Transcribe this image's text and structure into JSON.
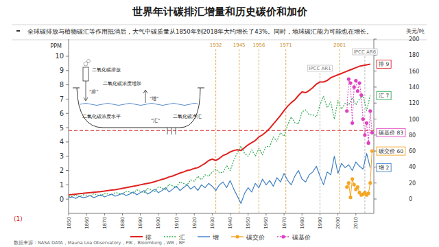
{
  "chart_data": {
    "type": "line",
    "title": "世界年计碳排汇增量和历史碳价和加价",
    "subtitle": "全球碳排放与植物碳汇等作用抵消后，大气中碳质量从1850年到2018年大约增长了43%。同时，地球碳汇能力可能也在增长。",
    "y_label": "PPM",
    "y2_label": "美元/吨",
    "source": "数据来源：NASA DATA，Mauna Loa Observatory，PIK，Bloomberg，WB，BP",
    "note": "(1)",
    "x": [
      1850,
      1852,
      1854,
      1856,
      1858,
      1860,
      1862,
      1864,
      1866,
      1868,
      1870,
      1872,
      1874,
      1876,
      1878,
      1880,
      1882,
      1884,
      1886,
      1888,
      1890,
      1892,
      1894,
      1896,
      1898,
      1900,
      1902,
      1904,
      1906,
      1908,
      1910,
      1912,
      1914,
      1916,
      1918,
      1920,
      1922,
      1924,
      1926,
      1928,
      1930,
      1932,
      1934,
      1936,
      1938,
      1940,
      1942,
      1944,
      1946,
      1948,
      1950,
      1952,
      1954,
      1956,
      1958,
      1960,
      1962,
      1964,
      1966,
      1968,
      1970,
      1972,
      1974,
      1976,
      1978,
      1980,
      1982,
      1984,
      1986,
      1988,
      1990,
      1992,
      1994,
      1996,
      1998,
      2000,
      2002,
      2004,
      2006,
      2008,
      2010,
      2012,
      2014,
      2016,
      2018
    ],
    "xlim": [
      1850,
      2020
    ],
    "xticks": [
      1850,
      1860,
      1870,
      1880,
      1890,
      1900,
      1910,
      1920,
      1930,
      1940,
      1950,
      1960,
      1970,
      1980,
      1990,
      2000,
      2010
    ],
    "ylim": [
      -1,
      11.2
    ],
    "yticks": [
      0,
      1,
      2,
      3,
      4,
      5,
      6,
      7,
      8,
      9,
      10
    ],
    "y2lim": [
      -18,
      200
    ],
    "y2ticks": [
      0,
      20,
      40,
      60,
      80,
      100,
      120,
      140,
      160,
      180,
      200
    ],
    "grid": false,
    "legend": "bottom",
    "hline": 4.8,
    "vlines": [
      1932,
      1945,
      1956,
      1971,
      2001
    ],
    "ipcc": [
      {
        "x": 1990,
        "label": "IPCC AR1"
      },
      {
        "x": 2015,
        "label": "IPCC AR6"
      }
    ],
    "series": [
      {
        "name": "排",
        "color": "#e02020",
        "line_style": "solid",
        "marker": "none",
        "end_label": "排 9",
        "values": [
          0.3,
          0.32,
          0.35,
          0.38,
          0.4,
          0.43,
          0.45,
          0.48,
          0.5,
          0.53,
          0.56,
          0.6,
          0.63,
          0.66,
          0.7,
          0.75,
          0.8,
          0.85,
          0.9,
          0.95,
          1.0,
          1.05,
          1.1,
          1.15,
          1.22,
          1.3,
          1.38,
          1.45,
          1.55,
          1.62,
          1.72,
          1.82,
          1.9,
          2.0,
          2.05,
          2.15,
          2.2,
          2.35,
          2.5,
          2.7,
          2.8,
          2.7,
          2.85,
          3.05,
          3.15,
          3.3,
          3.4,
          3.45,
          3.4,
          3.6,
          3.8,
          3.95,
          4.1,
          4.35,
          4.5,
          4.7,
          4.95,
          5.25,
          5.55,
          5.85,
          6.2,
          6.5,
          6.75,
          6.95,
          7.25,
          7.5,
          7.45,
          7.6,
          7.8,
          8.05,
          8.2,
          8.2,
          8.3,
          8.5,
          8.6,
          8.7,
          8.8,
          8.9,
          9.0,
          9.1,
          9.2,
          9.3,
          9.35,
          9.4,
          9.45
        ]
      },
      {
        "name": "汇",
        "color": "#2fa84f",
        "line_style": "dotted",
        "marker": "none",
        "end_label": "汇 7",
        "values": [
          0.2,
          0.17,
          0.3,
          0.18,
          0.3,
          0.28,
          0.2,
          0.38,
          0.3,
          0.23,
          0.41,
          0.35,
          0.28,
          0.46,
          0.4,
          0.35,
          0.55,
          0.5,
          0.4,
          0.65,
          0.55,
          0.45,
          0.75,
          0.65,
          0.52,
          0.85,
          0.78,
          0.65,
          1.05,
          0.92,
          0.82,
          1.22,
          1.1,
          1.0,
          1.35,
          1.25,
          1.6,
          1.35,
          1.7,
          1.6,
          1.9,
          2.1,
          1.85,
          1.85,
          2.35,
          2.0,
          2.7,
          3.25,
          3.7,
          3.2,
          3.0,
          3.45,
          3.0,
          3.55,
          3.1,
          3.7,
          3.65,
          4.35,
          4.05,
          4.65,
          4.4,
          5.2,
          5.75,
          5.35,
          5.25,
          6.1,
          6.25,
          5.9,
          5.9,
          5.75,
          6.6,
          7.2,
          6.4,
          6.8,
          5.6,
          6.9,
          6.3,
          6.7,
          6.6,
          7.1,
          6.6,
          7.0,
          7.25,
          6.2,
          7.25
        ]
      },
      {
        "name": "增",
        "color": "#3f7fc4",
        "line_style": "solid",
        "marker": "none",
        "end_label": "增 2",
        "values": [
          0.1,
          0.15,
          0.05,
          0.2,
          0.1,
          0.15,
          0.25,
          0.1,
          0.2,
          0.3,
          0.15,
          0.25,
          0.35,
          0.2,
          0.3,
          0.4,
          0.25,
          0.35,
          0.5,
          0.3,
          0.45,
          0.6,
          0.35,
          0.5,
          0.7,
          0.45,
          0.6,
          0.8,
          0.5,
          0.7,
          0.9,
          0.6,
          0.8,
          1.0,
          0.7,
          0.9,
          0.6,
          1.0,
          0.8,
          1.1,
          0.9,
          0.6,
          1.0,
          1.2,
          0.8,
          1.3,
          0.7,
          0.2,
          -0.3,
          0.4,
          0.8,
          0.5,
          1.1,
          0.8,
          1.4,
          1.0,
          1.3,
          0.9,
          1.5,
          1.2,
          1.8,
          1.3,
          1.0,
          1.6,
          2.0,
          1.4,
          1.2,
          1.7,
          1.9,
          2.3,
          1.6,
          1.0,
          1.9,
          1.7,
          3.0,
          1.8,
          2.5,
          2.2,
          2.4,
          2.0,
          2.6,
          2.3,
          2.1,
          3.2,
          2.2
        ]
      },
      {
        "name": "碳交价",
        "color": "#f5a623",
        "line_style": "solid",
        "marker": "circle",
        "axis": "y2",
        "end_label": "碳交价 60",
        "x": [
          2005,
          2006,
          2007,
          2008,
          2009,
          2010,
          2011,
          2012,
          2013,
          2014,
          2015,
          2016,
          2017,
          2018,
          2019
        ],
        "values": [
          15,
          20,
          2,
          25,
          18,
          12,
          15,
          8,
          5,
          6,
          8,
          5,
          7,
          20,
          60
        ]
      },
      {
        "name": "碳基价",
        "color": "#e040c0",
        "line_style": "dotted",
        "marker": "circle",
        "axis": "y2",
        "end_label": "碳基价 83",
        "x": [
          2005,
          2006,
          2007,
          2008,
          2009,
          2010,
          2011,
          2012,
          2013,
          2014,
          2015,
          2016,
          2017,
          2018,
          2019
        ],
        "values": [
          110,
          150,
          145,
          95,
          140,
          148,
          135,
          145,
          130,
          100,
          80,
          95,
          70,
          110,
          83
        ]
      }
    ]
  },
  "inset": {
    "emission": "二氧化碳排放",
    "pai": "“排”",
    "increase": "二氧化碳浓度增加",
    "zeng": "“增”",
    "level": "二氧化碳浓度水平",
    "hui": "“汇”",
    "sink": "二氧化碳净汇"
  }
}
